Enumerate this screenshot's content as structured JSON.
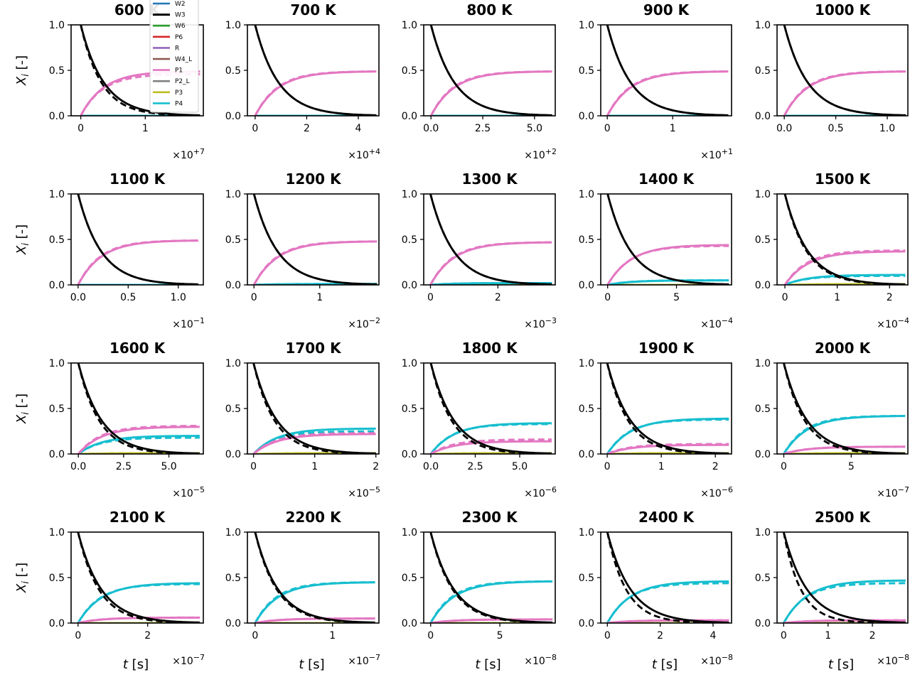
{
  "figure": {
    "y_tick_labels": [
      "0.0",
      "0.5",
      "1.0"
    ],
    "ylabel": "X_i [-]",
    "xlabel": "t [s]"
  },
  "legend": [
    "W2",
    "W3",
    "W6",
    "P6",
    "R",
    "W4_L",
    "P1",
    "P2_L",
    "P3",
    "P4"
  ],
  "colors": {
    "W2": "#1f77b4",
    "W3": "#000000",
    "W6": "#2ca02c",
    "P6": "#d62728",
    "R": "#9467bd",
    "W4_L": "#8c564b",
    "P1": "#e377c2",
    "P2_L": "#7f7f7f",
    "P3": "#bcbd22",
    "P4": "#17becf"
  },
  "chart_data": [
    {
      "type": "line",
      "title": "600 K",
      "x_multiplier": "×10+7",
      "xlim": [
        -0.15,
        1.9
      ],
      "x_ticks": [
        0,
        1
      ],
      "x_tick_labels": [
        "0",
        "1"
      ],
      "ylim": [
        0,
        1
      ],
      "tmax": 1.85,
      "final": {
        "P1": 0.49,
        "P4": 0.0,
        "P3": 0.0
      },
      "dash_offset": {
        "P1": -0.03,
        "P4": 0,
        "W3": 0.02
      }
    },
    {
      "type": "line",
      "title": "700 K",
      "x_multiplier": "×10+4",
      "xlim": [
        -0.3,
        4.8
      ],
      "x_ticks": [
        0,
        2,
        4
      ],
      "x_tick_labels": [
        "0",
        "2",
        "4"
      ],
      "ylim": [
        0,
        1
      ],
      "tmax": 4.7,
      "final": {
        "P1": 0.49,
        "P4": 0.0,
        "P3": 0.0
      },
      "dash_offset": {
        "P1": 0,
        "P4": 0,
        "W3": 0
      }
    },
    {
      "type": "line",
      "title": "800 K",
      "x_multiplier": "×10+2",
      "xlim": [
        -0.35,
        6.0
      ],
      "x_ticks": [
        0,
        2.5,
        5.0
      ],
      "x_tick_labels": [
        "0.0",
        "2.5",
        "5.0"
      ],
      "ylim": [
        0,
        1
      ],
      "tmax": 5.85,
      "final": {
        "P1": 0.49,
        "P4": 0.0,
        "P3": 0.0
      },
      "dash_offset": {
        "P1": 0,
        "P4": 0,
        "W3": 0
      }
    },
    {
      "type": "line",
      "title": "900 K",
      "x_multiplier": "×10+1",
      "xlim": [
        -0.1,
        1.9
      ],
      "x_ticks": [
        0,
        1
      ],
      "x_tick_labels": [
        "0",
        "1"
      ],
      "ylim": [
        0,
        1
      ],
      "tmax": 1.85,
      "final": {
        "P1": 0.49,
        "P4": 0.0,
        "P3": 0.0
      },
      "dash_offset": {
        "P1": 0,
        "P4": 0,
        "W3": 0
      }
    },
    {
      "type": "line",
      "title": "1000 K",
      "x_multiplier": "",
      "xlim": [
        -0.07,
        1.2
      ],
      "x_ticks": [
        0,
        0.5,
        1.0
      ],
      "x_tick_labels": [
        "0.0",
        "0.5",
        "1.0"
      ],
      "ylim": [
        0,
        1
      ],
      "tmax": 1.18,
      "final": {
        "P1": 0.49,
        "P4": 0.0,
        "P3": 0.0
      },
      "dash_offset": {
        "P1": 0,
        "P4": 0,
        "W3": 0
      }
    },
    {
      "type": "line",
      "title": "1100 K",
      "x_multiplier": "×10−1",
      "xlim": [
        -0.07,
        1.25
      ],
      "x_ticks": [
        0,
        0.5,
        1.0
      ],
      "x_tick_labels": [
        "0.0",
        "0.5",
        "1.0"
      ],
      "ylim": [
        0,
        1
      ],
      "tmax": 1.2,
      "final": {
        "P1": 0.49,
        "P4": 0.0,
        "P3": 0.0
      },
      "dash_offset": {
        "P1": 0,
        "P4": 0,
        "W3": 0
      }
    },
    {
      "type": "line",
      "title": "1200 K",
      "x_multiplier": "×10−2",
      "xlim": [
        -0.1,
        1.9
      ],
      "x_ticks": [
        0,
        1
      ],
      "x_tick_labels": [
        "0",
        "1"
      ],
      "ylim": [
        0,
        1
      ],
      "tmax": 1.87,
      "final": {
        "P1": 0.48,
        "P4": 0.01,
        "P3": 0.0
      },
      "dash_offset": {
        "P1": 0,
        "P4": 0,
        "W3": 0
      }
    },
    {
      "type": "line",
      "title": "1300 K",
      "x_multiplier": "×10−3",
      "xlim": [
        -0.2,
        3.7
      ],
      "x_ticks": [
        0,
        2
      ],
      "x_tick_labels": [
        "0",
        "2"
      ],
      "ylim": [
        0,
        1
      ],
      "tmax": 3.6,
      "final": {
        "P1": 0.47,
        "P4": 0.02,
        "P3": 0.0
      },
      "dash_offset": {
        "P1": 0,
        "P4": 0,
        "W3": 0
      }
    },
    {
      "type": "line",
      "title": "1400 K",
      "x_multiplier": "×10−4",
      "xlim": [
        -0.5,
        9.0
      ],
      "x_ticks": [
        0,
        5
      ],
      "x_tick_labels": [
        "0",
        "5"
      ],
      "ylim": [
        0,
        1
      ],
      "tmax": 8.8,
      "final": {
        "P1": 0.44,
        "P4": 0.05,
        "P3": 0.0
      },
      "dash_offset": {
        "P1": -0.01,
        "P4": 0,
        "W3": 0
      }
    },
    {
      "type": "line",
      "title": "1500 K",
      "x_multiplier": "×10−4",
      "xlim": [
        -0.15,
        2.35
      ],
      "x_ticks": [
        0,
        1,
        2
      ],
      "x_tick_labels": [
        "0",
        "1",
        "2"
      ],
      "ylim": [
        0,
        1
      ],
      "tmax": 2.3,
      "final": {
        "P1": 0.37,
        "P4": 0.11,
        "P3": 0.01
      },
      "dash_offset": {
        "P1": 0.01,
        "P4": -0.01,
        "W3": 0.01
      }
    },
    {
      "type": "line",
      "title": "1600 K",
      "x_multiplier": "×10−5",
      "xlim": [
        -0.4,
        6.9
      ],
      "x_ticks": [
        0,
        2.5,
        5.0
      ],
      "x_tick_labels": [
        "0.0",
        "2.5",
        "5.0"
      ],
      "ylim": [
        0,
        1
      ],
      "tmax": 6.7,
      "final": {
        "P1": 0.3,
        "P4": 0.2,
        "P3": 0.01
      },
      "dash_offset": {
        "P1": 0.01,
        "P4": -0.02,
        "W3": 0.02
      }
    },
    {
      "type": "line",
      "title": "1700 K",
      "x_multiplier": "×10−5",
      "xlim": [
        -0.1,
        2.05
      ],
      "x_ticks": [
        0,
        1,
        2
      ],
      "x_tick_labels": [
        "0",
        "1",
        "2"
      ],
      "ylim": [
        0,
        1
      ],
      "tmax": 2.0,
      "final": {
        "P1": 0.22,
        "P4": 0.28,
        "P3": 0.01
      },
      "dash_offset": {
        "P1": 0.01,
        "P4": -0.03,
        "W3": 0.02
      }
    },
    {
      "type": "line",
      "title": "1800 K",
      "x_multiplier": "×10−6",
      "xlim": [
        -0.4,
        7.0
      ],
      "x_ticks": [
        0,
        2.5,
        5.0
      ],
      "x_tick_labels": [
        "0.0",
        "2.5",
        "5.0"
      ],
      "ylim": [
        0,
        1
      ],
      "tmax": 6.8,
      "final": {
        "P1": 0.14,
        "P4": 0.34,
        "P3": 0.01
      },
      "dash_offset": {
        "P1": 0.02,
        "P4": -0.01,
        "W3": 0.02
      }
    },
    {
      "type": "line",
      "title": "1900 K",
      "x_multiplier": "×10−6",
      "xlim": [
        -0.12,
        2.3
      ],
      "x_ticks": [
        0,
        1,
        2
      ],
      "x_tick_labels": [
        "0",
        "1",
        "2"
      ],
      "ylim": [
        0,
        1
      ],
      "tmax": 2.25,
      "final": {
        "P1": 0.1,
        "P4": 0.39,
        "P3": 0.01
      },
      "dash_offset": {
        "P1": 0.01,
        "P4": -0.01,
        "W3": 0.02
      }
    },
    {
      "type": "line",
      "title": "2000 K",
      "x_multiplier": "×10−7",
      "xlim": [
        -0.5,
        9.2
      ],
      "x_ticks": [
        0,
        5
      ],
      "x_tick_labels": [
        "0",
        "5"
      ],
      "ylim": [
        0,
        1
      ],
      "tmax": 9.0,
      "final": {
        "P1": 0.08,
        "P4": 0.42,
        "P3": 0.01
      },
      "dash_offset": {
        "P1": 0,
        "P4": 0,
        "W3": 0.02
      }
    },
    {
      "type": "line",
      "title": "2100 K",
      "x_multiplier": "×10−7",
      "xlim": [
        -0.2,
        3.6
      ],
      "x_ticks": [
        0,
        2
      ],
      "x_tick_labels": [
        "0",
        "2"
      ],
      "ylim": [
        0,
        1
      ],
      "tmax": 3.5,
      "final": {
        "P1": 0.06,
        "P4": 0.44,
        "P3": 0.0
      },
      "dash_offset": {
        "P1": 0,
        "P4": -0.01,
        "W3": 0.02
      }
    },
    {
      "type": "line",
      "title": "2200 K",
      "x_multiplier": "×10−7",
      "xlim": [
        -0.1,
        1.6
      ],
      "x_ticks": [
        0,
        1
      ],
      "x_tick_labels": [
        "0",
        "1"
      ],
      "ylim": [
        0,
        1
      ],
      "tmax": 1.55,
      "final": {
        "P1": 0.05,
        "P4": 0.45,
        "P3": 0.0
      },
      "dash_offset": {
        "P1": 0,
        "P4": 0,
        "W3": 0.01
      }
    },
    {
      "type": "line",
      "title": "2300 K",
      "x_multiplier": "×10−8",
      "xlim": [
        -0.5,
        9.0
      ],
      "x_ticks": [
        0,
        5
      ],
      "x_tick_labels": [
        "0",
        "5"
      ],
      "ylim": [
        0,
        1
      ],
      "tmax": 8.8,
      "final": {
        "P1": 0.04,
        "P4": 0.46,
        "P3": 0.0
      },
      "dash_offset": {
        "P1": 0,
        "P4": 0,
        "W3": 0.01
      }
    },
    {
      "type": "line",
      "title": "2400 K",
      "x_multiplier": "×10−8",
      "xlim": [
        -0.25,
        4.7
      ],
      "x_ticks": [
        0,
        2,
        4
      ],
      "x_tick_labels": [
        "0",
        "2",
        "4"
      ],
      "ylim": [
        0,
        1
      ],
      "tmax": 4.6,
      "final": {
        "P1": 0.03,
        "P4": 0.46,
        "P3": 0.0
      },
      "dash_offset": {
        "P1": 0,
        "P4": -0.02,
        "W3": 0.04
      }
    },
    {
      "type": "line",
      "title": "2500 K",
      "x_multiplier": "×10−8",
      "xlim": [
        -0.15,
        2.8
      ],
      "x_ticks": [
        0,
        1,
        2
      ],
      "x_tick_labels": [
        "0",
        "1",
        "2"
      ],
      "ylim": [
        0,
        1
      ],
      "tmax": 2.75,
      "final": {
        "P1": 0.03,
        "P4": 0.47,
        "P3": 0.0
      },
      "dash_offset": {
        "P1": 0,
        "P4": -0.03,
        "W3": 0.06
      }
    }
  ]
}
